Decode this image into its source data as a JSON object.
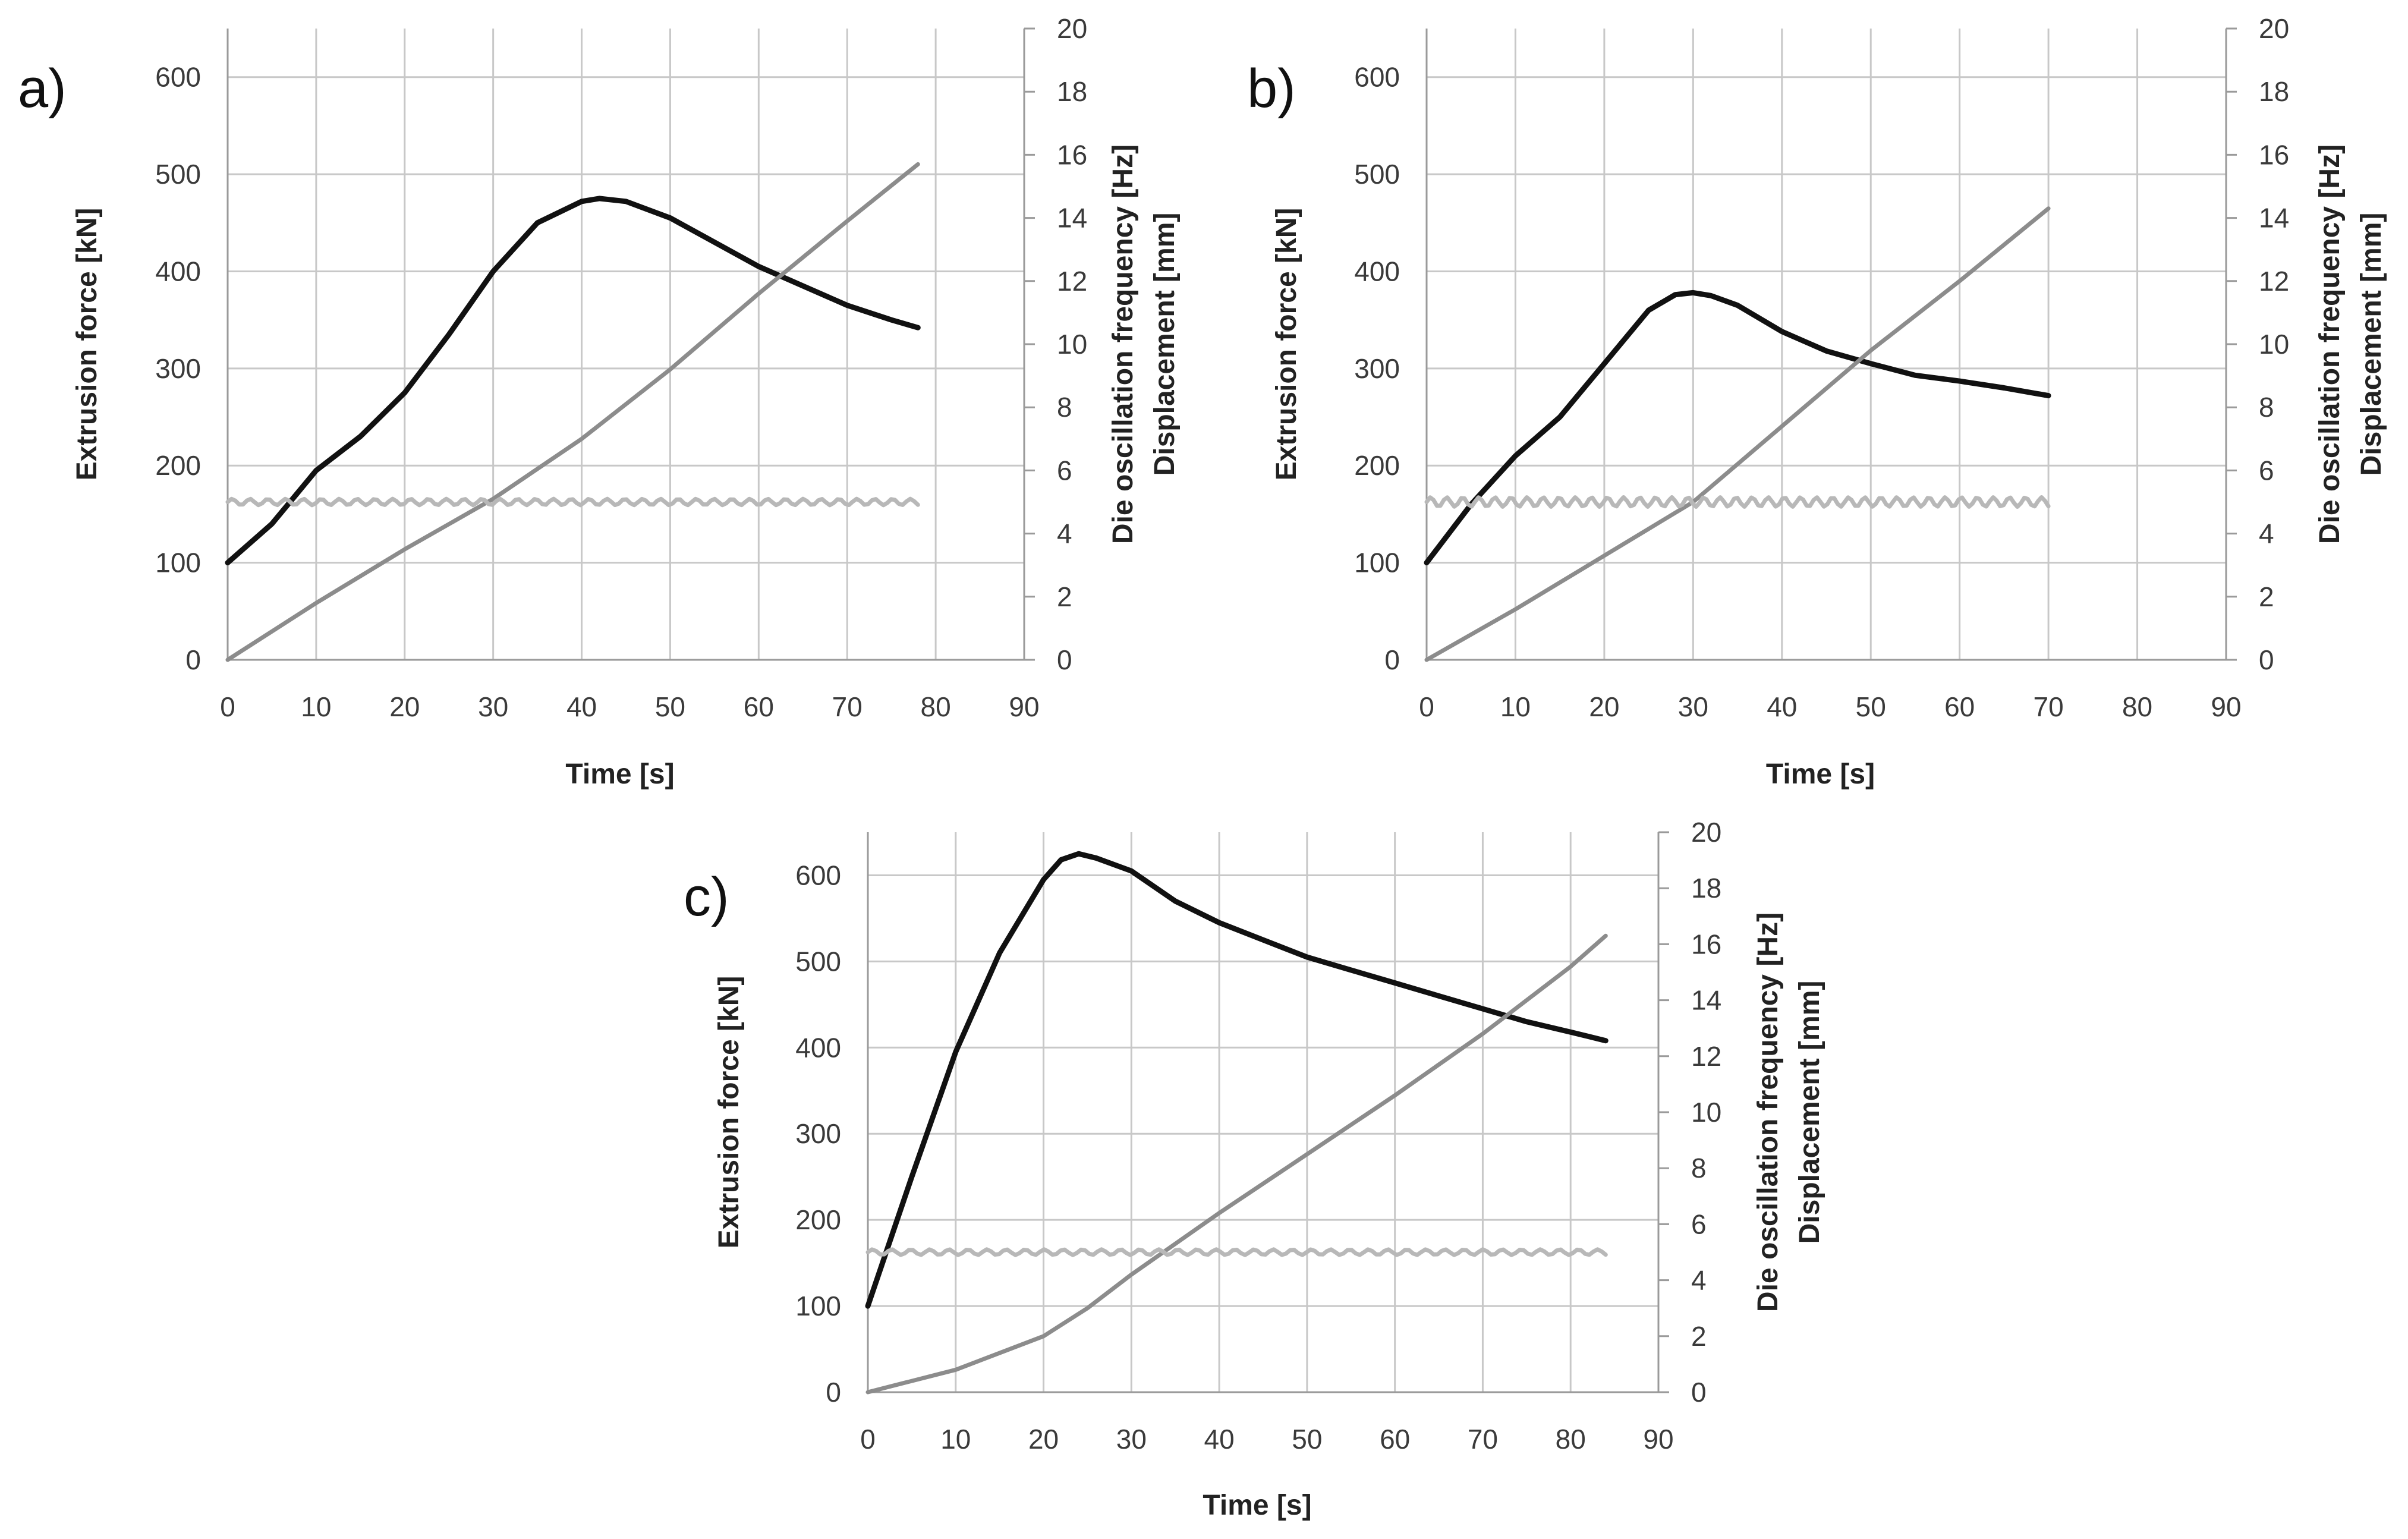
{
  "chart_data": [
    {
      "type": "line",
      "panel_label": "a)",
      "xlabel": "Time [s]",
      "ylabel": "Extrusion force [kN]",
      "y2label_lines": [
        "Die oscillation frequency [Hz]",
        "Displacement [mm]"
      ],
      "xlim": [
        0,
        90
      ],
      "ylim": [
        0,
        650
      ],
      "y2lim": [
        0,
        20
      ],
      "xticks": [
        0,
        10,
        20,
        30,
        40,
        50,
        60,
        70,
        80,
        90
      ],
      "yticks": [
        0,
        100,
        200,
        300,
        400,
        500,
        600
      ],
      "y2ticks": [
        0,
        2,
        4,
        6,
        8,
        10,
        12,
        14,
        16,
        18,
        20
      ],
      "grid": true,
      "series": [
        {
          "name": "Extrusion force [kN]",
          "axis": "left",
          "color": "#111111",
          "x": [
            0,
            5,
            10,
            15,
            20,
            25,
            30,
            35,
            40,
            42,
            45,
            50,
            55,
            60,
            65,
            70,
            75,
            78
          ],
          "y": [
            100,
            140,
            195,
            230,
            275,
            335,
            400,
            450,
            472,
            475,
            472,
            455,
            430,
            405,
            385,
            365,
            350,
            342
          ]
        },
        {
          "name": "Displacement [mm]",
          "axis": "right",
          "color": "#8c8c8c",
          "x": [
            0,
            10,
            20,
            30,
            40,
            50,
            60,
            70,
            78
          ],
          "y": [
            0,
            1.8,
            3.5,
            5.1,
            7.0,
            9.2,
            11.6,
            13.9,
            15.7
          ]
        },
        {
          "name": "Die oscillation frequency [Hz]",
          "axis": "right",
          "color": "#b8b8b8",
          "x": [
            0,
            78
          ],
          "y": [
            5.0,
            5.0
          ],
          "ripple": 0.1
        }
      ]
    },
    {
      "type": "line",
      "panel_label": "b)",
      "xlabel": "Time [s]",
      "ylabel": "Extrusion force [kN]",
      "y2label_lines": [
        "Die oscillation frequency  [Hz]",
        "Displacement [mm]"
      ],
      "xlim": [
        0,
        90
      ],
      "ylim": [
        0,
        650
      ],
      "y2lim": [
        0,
        20
      ],
      "xticks": [
        0,
        10,
        20,
        30,
        40,
        50,
        60,
        70,
        80,
        90
      ],
      "yticks": [
        0,
        100,
        200,
        300,
        400,
        500,
        600
      ],
      "y2ticks": [
        0,
        2,
        4,
        6,
        8,
        10,
        12,
        14,
        16,
        18,
        20
      ],
      "grid": true,
      "series": [
        {
          "name": "Extrusion force [kN]",
          "axis": "left",
          "color": "#111111",
          "x": [
            0,
            5,
            10,
            15,
            20,
            25,
            28,
            30,
            32,
            35,
            40,
            45,
            50,
            55,
            60,
            65,
            70
          ],
          "y": [
            100,
            160,
            210,
            250,
            305,
            360,
            376,
            378,
            375,
            365,
            338,
            318,
            305,
            293,
            287,
            280,
            272
          ]
        },
        {
          "name": "Displacement [mm]",
          "axis": "right",
          "color": "#8c8c8c",
          "x": [
            0,
            10,
            20,
            30,
            40,
            50,
            60,
            70
          ],
          "y": [
            0,
            1.6,
            3.3,
            5.0,
            7.4,
            9.8,
            12.0,
            14.3
          ]
        },
        {
          "name": "Die oscillation frequency [Hz]",
          "axis": "right",
          "color": "#b8b8b8",
          "x": [
            0,
            70
          ],
          "y": [
            5.0,
            5.0
          ],
          "ripple": 0.15
        }
      ]
    },
    {
      "type": "line",
      "panel_label": "c)",
      "xlabel": "Time [s]",
      "ylabel": "Extrusion force [kN]",
      "y2label_lines": [
        "Die oscillation frequency [Hz]",
        "Displacement [mm]"
      ],
      "xlim": [
        0,
        90
      ],
      "ylim": [
        0,
        650
      ],
      "y2lim": [
        0,
        20
      ],
      "xticks": [
        0,
        10,
        20,
        30,
        40,
        50,
        60,
        70,
        80,
        90
      ],
      "yticks": [
        0,
        100,
        200,
        300,
        400,
        500,
        600
      ],
      "y2ticks": [
        0,
        2,
        4,
        6,
        8,
        10,
        12,
        14,
        16,
        18,
        20
      ],
      "grid": true,
      "series": [
        {
          "name": "Extrusion force [kN]",
          "axis": "left",
          "color": "#111111",
          "x": [
            0,
            5,
            10,
            15,
            20,
            22,
            24,
            26,
            30,
            35,
            40,
            45,
            50,
            55,
            60,
            65,
            70,
            75,
            80,
            84
          ],
          "y": [
            100,
            250,
            395,
            510,
            595,
            618,
            625,
            620,
            605,
            570,
            545,
            525,
            505,
            490,
            475,
            460,
            445,
            430,
            418,
            408
          ]
        },
        {
          "name": "Displacement [mm]",
          "axis": "right",
          "color": "#8c8c8c",
          "x": [
            0,
            10,
            20,
            25,
            30,
            40,
            50,
            60,
            70,
            80,
            84
          ],
          "y": [
            0,
            0.8,
            2.0,
            3.0,
            4.2,
            6.4,
            8.5,
            10.6,
            12.8,
            15.2,
            16.3
          ]
        },
        {
          "name": "Die oscillation frequency [Hz]",
          "axis": "right",
          "color": "#b8b8b8",
          "x": [
            0,
            84
          ],
          "y": [
            5.0,
            5.0
          ],
          "ripple": 0.1
        }
      ]
    }
  ]
}
